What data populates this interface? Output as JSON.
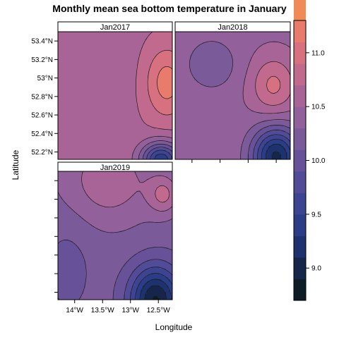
{
  "chart_data": {
    "type": "contour",
    "title": "Monthly mean sea bottom temperature in January",
    "xlabel": "Longitude",
    "ylabel": "Latitude",
    "xlim": [
      -14.3,
      -12.25
    ],
    "ylim": [
      52.12,
      53.5
    ],
    "x_ticks": [
      {
        "value": -14.0,
        "label": "14°W"
      },
      {
        "value": -13.5,
        "label": "13.5°W"
      },
      {
        "value": -13.0,
        "label": "13°W"
      },
      {
        "value": -12.5,
        "label": "12.5°W"
      }
    ],
    "y_ticks": [
      {
        "value": 52.2,
        "label": "52.2°N"
      },
      {
        "value": 52.4,
        "label": "52.4°N"
      },
      {
        "value": 52.6,
        "label": "52.6°N"
      },
      {
        "value": 52.8,
        "label": "52.8°N"
      },
      {
        "value": 53.0,
        "label": "53°N"
      },
      {
        "value": 53.2,
        "label": "53.2°N"
      },
      {
        "value": 53.4,
        "label": "53.4°N"
      }
    ],
    "panels": [
      {
        "name": "Jan2017",
        "base": 10.65,
        "features": [
          {
            "x": -12.35,
            "y": 52.95,
            "sx": 0.28,
            "sy": 0.28,
            "amp": 0.55
          },
          {
            "x": -12.45,
            "y": 52.12,
            "sx": 0.25,
            "sy": 0.13,
            "amp": -1.3
          },
          {
            "x": -13.7,
            "y": 53.05,
            "sx": 0.45,
            "sy": 0.3,
            "amp": -0.15
          }
        ]
      },
      {
        "name": "Jan2018",
        "base": 10.45,
        "features": [
          {
            "x": -13.65,
            "y": 53.15,
            "sx": 0.32,
            "sy": 0.2,
            "amp": -0.32
          },
          {
            "x": -12.55,
            "y": 52.92,
            "sx": 0.28,
            "sy": 0.22,
            "amp": 0.5
          },
          {
            "x": -12.5,
            "y": 52.15,
            "sx": 0.3,
            "sy": 0.22,
            "amp": -1.4
          }
        ]
      },
      {
        "name": "Jan2019",
        "base": 10.18,
        "features": [
          {
            "x": -13.4,
            "y": 53.4,
            "sx": 0.6,
            "sy": 0.35,
            "amp": 0.45
          },
          {
            "x": -12.4,
            "y": 53.25,
            "sx": 0.2,
            "sy": 0.15,
            "amp": 0.5
          },
          {
            "x": -12.55,
            "y": 52.12,
            "sx": 0.32,
            "sy": 0.25,
            "amp": -1.3
          },
          {
            "x": -14.1,
            "y": 52.5,
            "sx": 0.3,
            "sy": 0.4,
            "amp": -0.15
          }
        ]
      }
    ],
    "colorbar": {
      "min": 8.7,
      "max": 11.3,
      "step": 0.2,
      "ticks": [
        9.0,
        9.5,
        10.0,
        10.5,
        11.0
      ],
      "tick_labels": [
        "9.0",
        "9.5",
        "10.0",
        "10.5",
        "11.0"
      ],
      "colors": [
        "#0d1c26",
        "#15264a",
        "#1d326e",
        "#2c3d88",
        "#3d4491",
        "#524b97",
        "#675299",
        "#7b5a9a",
        "#92609a",
        "#a86496",
        "#c16a8e",
        "#d77180",
        "#e87b6c",
        "#f08a56",
        "#f39c48",
        "#f4af43",
        "#f5c748",
        "#eede58",
        "#e6ee6c"
      ]
    }
  }
}
